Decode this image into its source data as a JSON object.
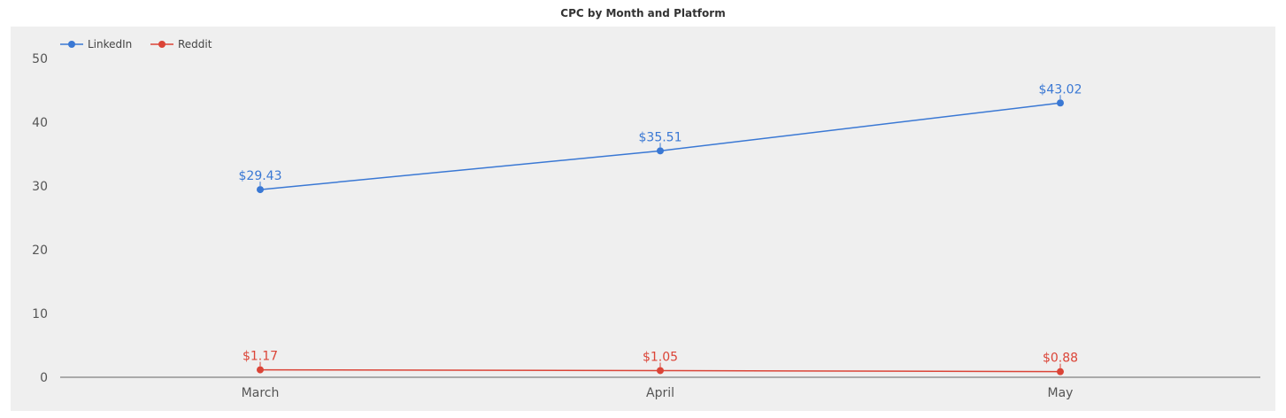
{
  "chart_data": {
    "type": "line",
    "title": "CPC by Month and Platform",
    "xlabel": "",
    "ylabel": "",
    "categories": [
      "March",
      "April",
      "May"
    ],
    "ylim": [
      0,
      50
    ],
    "yticks": [
      0,
      10,
      20,
      30,
      40,
      50
    ],
    "grid": false,
    "legend": "top-left",
    "series": [
      {
        "name": "LinkedIn",
        "color": "#3a78d4",
        "values": [
          29.43,
          35.51,
          43.02
        ],
        "labels": [
          "$29.43",
          "$35.51",
          "$43.02"
        ]
      },
      {
        "name": "Reddit",
        "color": "#db4437",
        "values": [
          1.17,
          1.05,
          0.88
        ],
        "labels": [
          "$1.17",
          "$1.05",
          "$0.88"
        ]
      }
    ]
  }
}
